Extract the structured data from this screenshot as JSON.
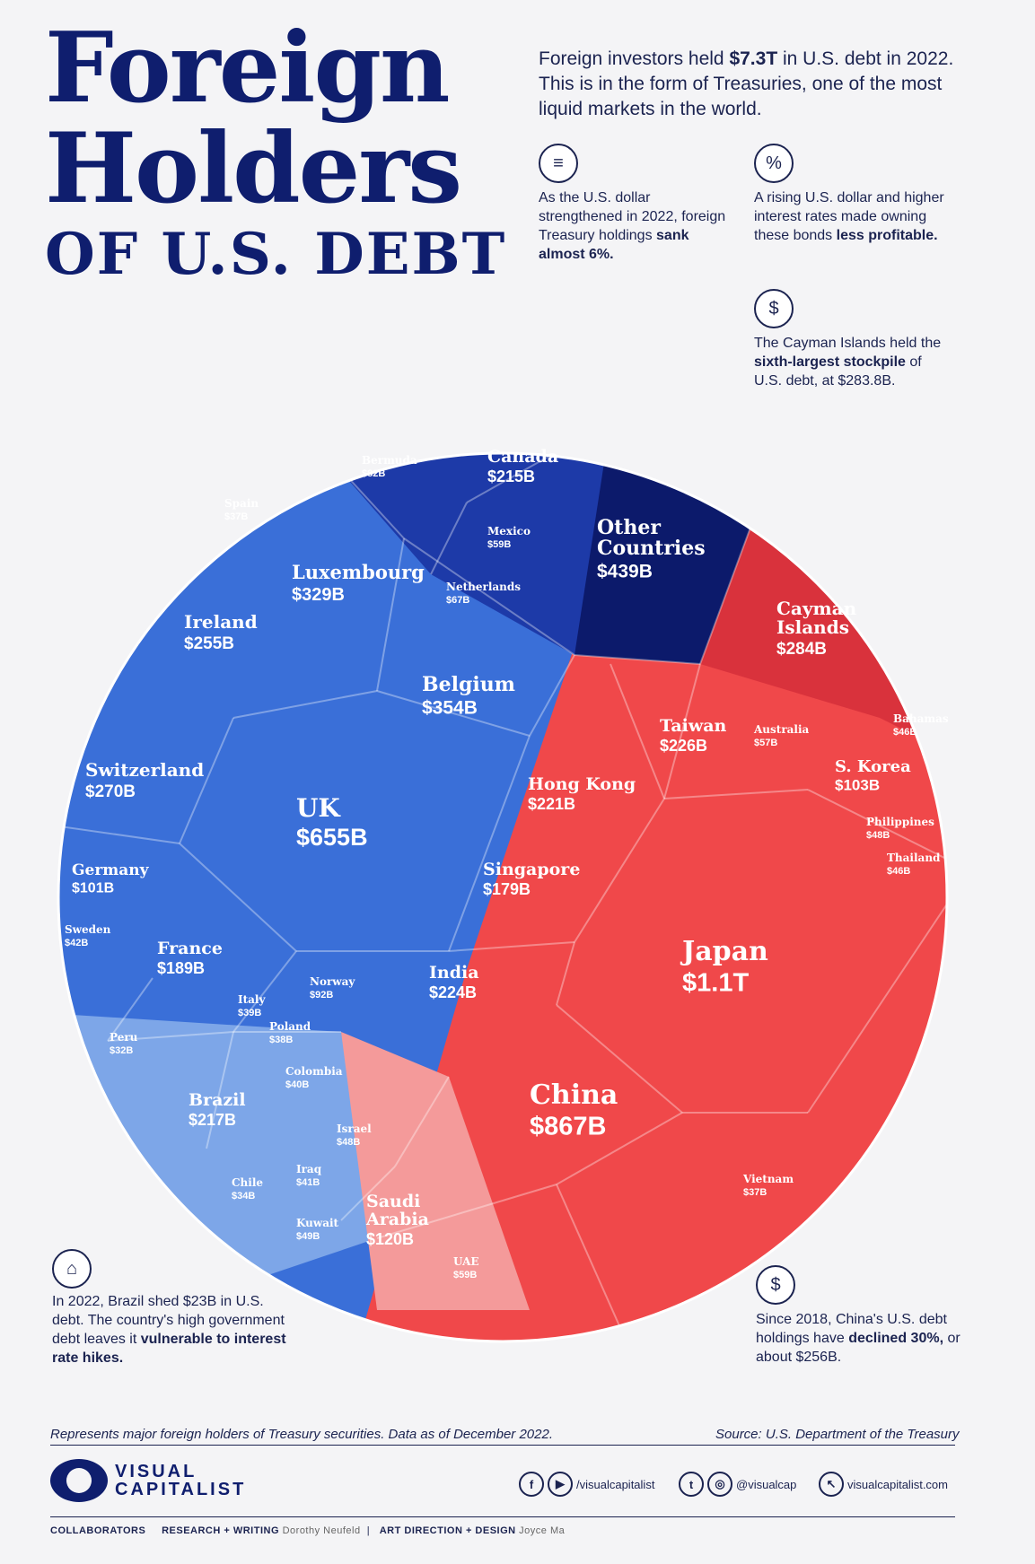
{
  "title": {
    "line1": "Foreign",
    "line2": "Holders",
    "line3": "OF U.S. DEBT"
  },
  "intro": {
    "pre": "Foreign investors held ",
    "bold": "$7.3T",
    "post": " in U.S. debt in 2022. This is in the form of Treasuries, one of the most liquid markets in the world."
  },
  "notes": {
    "dollar": {
      "text": "As the U.S. dollar strengthened in 2022, foreign Treasury holdings ",
      "bold": "sank almost 6%."
    },
    "rates": {
      "text": "A rising U.S. dollar and higher interest rates made owning these bonds ",
      "bold": "less profitable."
    },
    "cayman": {
      "text": "The Cayman Islands held the ",
      "bold": "sixth-largest stockpile",
      "post": " of U.S. debt, at $283.8B."
    },
    "brazil": {
      "text": "In 2022, Brazil shed $23B in U.S. debt. The country's high government debt leaves it ",
      "bold": "vulnerable to interest rate hikes."
    },
    "china": {
      "text": "Since 2018, China's U.S. debt holdings have ",
      "bold": "declined 30%,",
      "post": " or about $256B."
    }
  },
  "colors": {
    "europe": "#3a6fd8",
    "europe_dark": "#2148b0",
    "americas": "#1d3aa8",
    "other": "#0c1a6b",
    "asia": "#f0484a",
    "caribbean": "#d9323c",
    "latam": "#7da6e8",
    "mideast": "#f49a9a"
  },
  "chart_data": {
    "type": "voronoi-treemap",
    "unit": "$B",
    "items": [
      {
        "name": "Japan",
        "label": "$1.1T",
        "value": 1076,
        "group": "asia"
      },
      {
        "name": "China",
        "label": "$867B",
        "value": 867,
        "group": "asia"
      },
      {
        "name": "UK",
        "label": "$655B",
        "value": 655,
        "group": "europe"
      },
      {
        "name": "Other Countries",
        "label": "$439B",
        "value": 439,
        "group": "other"
      },
      {
        "name": "Belgium",
        "label": "$354B",
        "value": 354,
        "group": "europe"
      },
      {
        "name": "Luxembourg",
        "label": "$329B",
        "value": 329,
        "group": "europe"
      },
      {
        "name": "Cayman Islands",
        "label": "$284B",
        "value": 284,
        "group": "caribbean"
      },
      {
        "name": "Switzerland",
        "label": "$270B",
        "value": 270,
        "group": "europe"
      },
      {
        "name": "Ireland",
        "label": "$255B",
        "value": 255,
        "group": "europe"
      },
      {
        "name": "Taiwan",
        "label": "$226B",
        "value": 226,
        "group": "asia"
      },
      {
        "name": "India",
        "label": "$224B",
        "value": 224,
        "group": "asia"
      },
      {
        "name": "Hong Kong",
        "label": "$221B",
        "value": 221,
        "group": "asia"
      },
      {
        "name": "Brazil",
        "label": "$217B",
        "value": 217,
        "group": "latam"
      },
      {
        "name": "Canada",
        "label": "$215B",
        "value": 215,
        "group": "americas"
      },
      {
        "name": "France",
        "label": "$189B",
        "value": 189,
        "group": "europe"
      },
      {
        "name": "Singapore",
        "label": "$179B",
        "value": 179,
        "group": "asia"
      },
      {
        "name": "Saudi Arabia",
        "label": "$120B",
        "value": 120,
        "group": "mideast"
      },
      {
        "name": "S. Korea",
        "label": "$103B",
        "value": 103,
        "group": "asia"
      },
      {
        "name": "Germany",
        "label": "$101B",
        "value": 101,
        "group": "europe"
      },
      {
        "name": "Norway",
        "label": "$92B",
        "value": 92,
        "group": "europe"
      },
      {
        "name": "Bermuda",
        "label": "$82B",
        "value": 82,
        "group": "americas"
      },
      {
        "name": "Netherlands",
        "label": "$67B",
        "value": 67,
        "group": "europe"
      },
      {
        "name": "Mexico",
        "label": "$59B",
        "value": 59,
        "group": "americas"
      },
      {
        "name": "UAE",
        "label": "$59B",
        "value": 59,
        "group": "mideast"
      },
      {
        "name": "Australia",
        "label": "$57B",
        "value": 57,
        "group": "asia"
      },
      {
        "name": "Kuwait",
        "label": "$49B",
        "value": 49,
        "group": "mideast"
      },
      {
        "name": "Israel",
        "label": "$48B",
        "value": 48,
        "group": "mideast"
      },
      {
        "name": "Philippines",
        "label": "$48B",
        "value": 48,
        "group": "asia"
      },
      {
        "name": "Bahamas",
        "label": "$46B",
        "value": 46,
        "group": "caribbean"
      },
      {
        "name": "Thailand",
        "label": "$46B",
        "value": 46,
        "group": "asia"
      },
      {
        "name": "Sweden",
        "label": "$42B",
        "value": 42,
        "group": "europe"
      },
      {
        "name": "Iraq",
        "label": "$41B",
        "value": 41,
        "group": "mideast"
      },
      {
        "name": "Colombia",
        "label": "$40B",
        "value": 40,
        "group": "latam"
      },
      {
        "name": "Italy",
        "label": "$39B",
        "value": 39,
        "group": "europe"
      },
      {
        "name": "Poland",
        "label": "$38B",
        "value": 38,
        "group": "europe"
      },
      {
        "name": "Spain",
        "label": "$37B",
        "value": 37,
        "group": "europe"
      },
      {
        "name": "Vietnam",
        "label": "$37B",
        "value": 37,
        "group": "asia"
      },
      {
        "name": "Chile",
        "label": "$34B",
        "value": 34,
        "group": "latam"
      },
      {
        "name": "Peru",
        "label": "$32B",
        "value": 32,
        "group": "latam"
      }
    ]
  },
  "footer": {
    "represents": "Represents major foreign holders of Treasury securities. Data as of December 2022.",
    "source": "Source: U.S. Department of the Treasury",
    "logo_line1": "VISUAL",
    "logo_line2": "CAPITALIST",
    "social1": "/visualcapitalist",
    "social2": "@visualcap",
    "social3": "visualcapitalist.com",
    "collaborators": "COLLABORATORS",
    "research_label": "RESEARCH + WRITING",
    "research_name": "Dorothy Neufeld",
    "art_label": "ART DIRECTION + DESIGN",
    "art_name": "Joyce Ma"
  }
}
